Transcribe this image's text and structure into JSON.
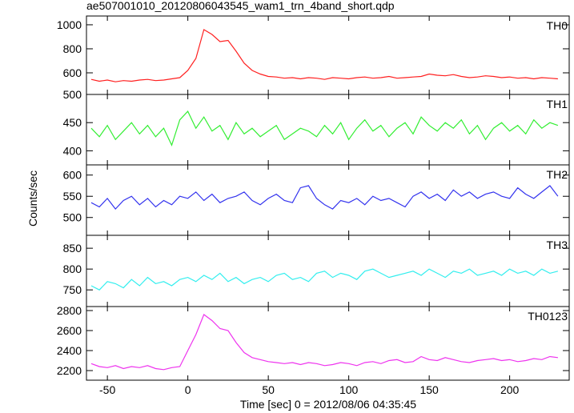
{
  "chart_data": {
    "type": "line",
    "title": "ae507001010_20120806043545_wam1_trn_4band_short.qdp",
    "xlabel": "Time [sec] 0 = 2012/08/06 04:35:45",
    "ylabel": "Counts/sec",
    "xlim": [
      -63,
      237
    ],
    "xticks": [
      -50,
      0,
      50,
      100,
      150,
      200
    ],
    "x": [
      -60,
      -55,
      -50,
      -45,
      -40,
      -35,
      -30,
      -25,
      -20,
      -15,
      -10,
      -5,
      0,
      5,
      10,
      15,
      20,
      25,
      30,
      35,
      40,
      45,
      50,
      55,
      60,
      65,
      70,
      75,
      80,
      85,
      90,
      95,
      100,
      105,
      110,
      115,
      120,
      125,
      130,
      135,
      140,
      145,
      150,
      155,
      160,
      165,
      170,
      175,
      180,
      185,
      190,
      195,
      200,
      205,
      210,
      215,
      220,
      225,
      230
    ],
    "series": [
      {
        "name": "TH0",
        "color": "#ff2020",
        "ylim": [
          420,
          1073
        ],
        "yticks": [
          600,
          800,
          1000
        ],
        "values": [
          545,
          530,
          540,
          525,
          535,
          530,
          540,
          545,
          535,
          540,
          550,
          560,
          620,
          720,
          960,
          920,
          860,
          870,
          780,
          680,
          620,
          590,
          570,
          565,
          555,
          560,
          550,
          560,
          555,
          545,
          560,
          555,
          550,
          560,
          565,
          555,
          560,
          570,
          555,
          560,
          565,
          570,
          590,
          580,
          575,
          585,
          570,
          560,
          565,
          575,
          570,
          560,
          565,
          555,
          560,
          550,
          560,
          555,
          550
        ]
      },
      {
        "name": "TH1",
        "color": "#33ee33",
        "ylim": [
          375,
          500
        ],
        "yticks": [
          400,
          450,
          500
        ],
        "values": [
          440,
          425,
          445,
          420,
          435,
          450,
          430,
          445,
          425,
          440,
          410,
          455,
          470,
          440,
          460,
          435,
          445,
          420,
          450,
          430,
          440,
          425,
          435,
          445,
          420,
          430,
          440,
          435,
          425,
          445,
          430,
          450,
          420,
          440,
          455,
          435,
          445,
          425,
          440,
          450,
          430,
          460,
          445,
          435,
          450,
          440,
          455,
          430,
          445,
          420,
          440,
          450,
          435,
          445,
          430,
          455,
          440,
          450,
          445
        ]
      },
      {
        "name": "TH2",
        "color": "#3333ee",
        "ylim": [
          458,
          624
        ],
        "yticks": [
          500,
          550,
          600
        ],
        "values": [
          535,
          525,
          545,
          520,
          540,
          550,
          530,
          545,
          525,
          540,
          530,
          550,
          545,
          560,
          540,
          555,
          535,
          545,
          550,
          560,
          540,
          530,
          545,
          555,
          540,
          535,
          570,
          575,
          545,
          530,
          520,
          540,
          535,
          545,
          530,
          550,
          540,
          545,
          535,
          525,
          550,
          560,
          545,
          555,
          540,
          565,
          550,
          560,
          545,
          555,
          560,
          550,
          545,
          570,
          555,
          545,
          560,
          575,
          550
        ]
      },
      {
        "name": "TH3",
        "color": "#33eeee",
        "ylim": [
          710,
          881
        ],
        "yticks": [
          750,
          800,
          850
        ],
        "values": [
          760,
          750,
          770,
          765,
          755,
          775,
          760,
          780,
          765,
          770,
          760,
          775,
          780,
          770,
          785,
          775,
          790,
          770,
          780,
          765,
          775,
          780,
          770,
          785,
          790,
          775,
          780,
          770,
          790,
          795,
          780,
          790,
          785,
          775,
          795,
          800,
          790,
          780,
          785,
          790,
          795,
          785,
          800,
          790,
          780,
          795,
          790,
          800,
          785,
          790,
          795,
          785,
          800,
          790,
          795,
          785,
          800,
          790,
          795
        ]
      },
      {
        "name": "TH0123",
        "color": "#ee33ee",
        "ylim": [
          2104,
          2840
        ],
        "yticks": [
          2200,
          2400,
          2600,
          2800
        ],
        "values": [
          2270,
          2240,
          2230,
          2250,
          2220,
          2240,
          2230,
          2250,
          2220,
          2210,
          2230,
          2240,
          2400,
          2560,
          2760,
          2700,
          2620,
          2600,
          2480,
          2380,
          2330,
          2310,
          2290,
          2280,
          2270,
          2280,
          2260,
          2280,
          2270,
          2250,
          2260,
          2280,
          2270,
          2250,
          2280,
          2290,
          2270,
          2300,
          2310,
          2280,
          2290,
          2340,
          2310,
          2300,
          2330,
          2310,
          2290,
          2280,
          2300,
          2310,
          2320,
          2300,
          2310,
          2290,
          2300,
          2320,
          2310,
          2340,
          2330
        ]
      }
    ]
  }
}
